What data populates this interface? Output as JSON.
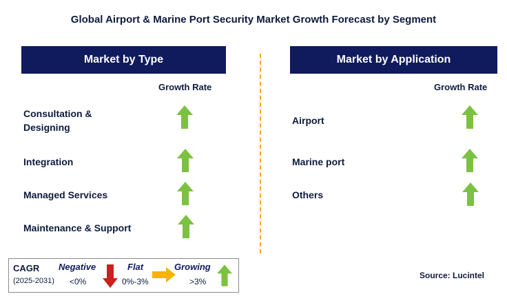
{
  "title": "Global Airport & Marine Port Security Market Growth Forecast by Segment",
  "colors": {
    "header_bg": "#0f1b5c",
    "growing": "#7dc142",
    "negative": "#cc1f1f",
    "flat": "#f5b400",
    "divider": "#f5a623"
  },
  "type_panel": {
    "header": "Market by Type",
    "growth_rate_label": "Growth Rate",
    "rows": [
      {
        "label_line1": "Consultation &",
        "label_line2": "Designing",
        "trend": "growing",
        "icon": "up-arrow-icon"
      },
      {
        "label_line1": "Integration",
        "label_line2": "",
        "trend": "growing",
        "icon": "up-arrow-icon"
      },
      {
        "label_line1": "Managed Services",
        "label_line2": "",
        "trend": "growing",
        "icon": "up-arrow-icon"
      },
      {
        "label_line1": "Maintenance & Support",
        "label_line2": "",
        "trend": "growing",
        "icon": "up-arrow-icon"
      }
    ]
  },
  "application_panel": {
    "header": "Market by Application",
    "growth_rate_label": "Growth Rate",
    "rows": [
      {
        "label": "Airport",
        "trend": "growing",
        "icon": "up-arrow-icon"
      },
      {
        "label": "Marine port",
        "trend": "growing",
        "icon": "up-arrow-icon"
      },
      {
        "label": "Others",
        "trend": "growing",
        "icon": "up-arrow-icon"
      }
    ]
  },
  "legend": {
    "cagr_label": "CAGR",
    "period": "(2025-2031)",
    "negative": {
      "label": "Negative",
      "range": "<0%",
      "icon": "down-arrow-icon"
    },
    "flat": {
      "label": "Flat",
      "range": "0%-3%",
      "icon": "right-arrow-icon"
    },
    "growing": {
      "label": "Growing",
      "range": ">3%",
      "icon": "up-arrow-icon"
    }
  },
  "source": "Source: Lucintel"
}
